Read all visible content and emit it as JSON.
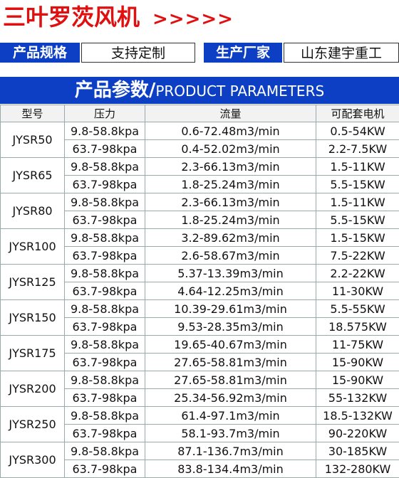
{
  "header": {
    "title": "三叶罗茨风机",
    "arrows": ">>>>>"
  },
  "info": {
    "spec_label": "产品规格",
    "spec_value": "支持定制",
    "maker_label": "生产厂家",
    "maker_value": "山东建宇重工"
  },
  "banner": {
    "title": "产品参数/",
    "subtitle": "PRODUCT PARAMETERS"
  },
  "table": {
    "header": [
      "型号",
      "压力",
      "流量",
      "可配套电机"
    ],
    "groups": [
      {
        "model": "JYSR50",
        "rows": [
          [
            "9.8-58.8kpa",
            "0.6-72.48m3/min",
            "0.5-54KW"
          ],
          [
            "63.7-98kpa",
            "0.4-52.02m3/min",
            "2.2-7.5KW"
          ]
        ]
      },
      {
        "model": "JYSR65",
        "rows": [
          [
            "9.8-58.8kpa",
            "2.3-66.13m3/min",
            "1.5-11KW"
          ],
          [
            "63.7-98kpa",
            "1.8-25.24m3/min",
            "5.5-15KW"
          ]
        ]
      },
      {
        "model": "JYSR80",
        "rows": [
          [
            "9.8-58.8kpa",
            "2.3-66.13m3/min",
            "1.5-11KW"
          ],
          [
            "63.7-98kpa",
            "1.8-25.24m3/min",
            "5.5-15KW"
          ]
        ]
      },
      {
        "model": "JYSR100",
        "rows": [
          [
            "9.8-58.8kpa",
            "3.2-89.62m3/min",
            "1.5-15KW"
          ],
          [
            "63.7-98kpa",
            "2.6-58.67m3/min",
            "7.5-22KW"
          ]
        ]
      },
      {
        "model": "JYSR125",
        "rows": [
          [
            "9.8-58.8kpa",
            "5.37-13.39m3/min",
            "2.2-22KW"
          ],
          [
            "63.7-98kpa",
            "4.64-12.25m3/min",
            "11-30KW"
          ]
        ]
      },
      {
        "model": "JYSR150",
        "rows": [
          [
            "9.8-58.8kpa",
            "10.39-29.61m3/min",
            "5.5-55KW"
          ],
          [
            "63.7-98kpa",
            "9.53-28.35m3/min",
            "18.575KW"
          ]
        ]
      },
      {
        "model": "JYSR175",
        "rows": [
          [
            "9.8-58.8kpa",
            "19.65-40.67m3/min",
            "11-75KW"
          ],
          [
            "63.7-98kpa",
            "27.65-58.81m3/min",
            "15-90KW"
          ]
        ]
      },
      {
        "model": "JYSR200",
        "rows": [
          [
            "9.8-58.8kpa",
            "27.65-58.81m3/min",
            "15-90KW"
          ],
          [
            "63.7-98kpa",
            "25.34-56.92m3/min",
            "55-132KW"
          ]
        ]
      },
      {
        "model": "JYSR250",
        "rows": [
          [
            "9.8-58.8kpa",
            "61.4-97.1m3/min",
            "18.5-132KW"
          ],
          [
            "63.7-98kpa",
            "58.1-93.7m3/min",
            "90-220KW"
          ]
        ]
      },
      {
        "model": "JYSR300",
        "rows": [
          [
            "9.8-58.8kpa",
            "87.1-136.7m3/min",
            "30-185KW"
          ],
          [
            "63.7-98kpa",
            "83.8-134.4m3/min",
            "132-280KW"
          ]
        ]
      }
    ]
  }
}
